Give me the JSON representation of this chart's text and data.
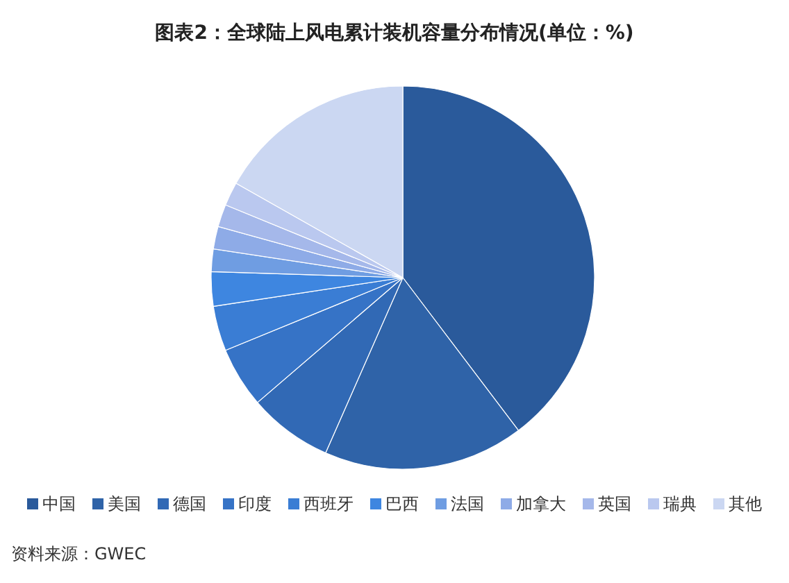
{
  "chart_data": {
    "type": "pie",
    "title": "图表2：全球陆上风电累计装机容量分布情况(单位：%)",
    "categories": [
      "中国",
      "美国",
      "德国",
      "印度",
      "西班牙",
      "巴西",
      "法国",
      "加拿大",
      "英国",
      "瑞典",
      "其他"
    ],
    "values": [
      39.7,
      16.9,
      7.1,
      5.1,
      3.8,
      2.9,
      1.9,
      1.9,
      1.9,
      2.0,
      16.8
    ],
    "colors": [
      "#2a5a9b",
      "#2f63a8",
      "#3169b5",
      "#3673c6",
      "#3a7dd4",
      "#3e86e0",
      "#6f9de2",
      "#8eabe7",
      "#a5b8ea",
      "#bac8ef",
      "#cbd7f2"
    ],
    "legend": "bottom",
    "annotations": [
      "资料来源：GWEC"
    ]
  }
}
